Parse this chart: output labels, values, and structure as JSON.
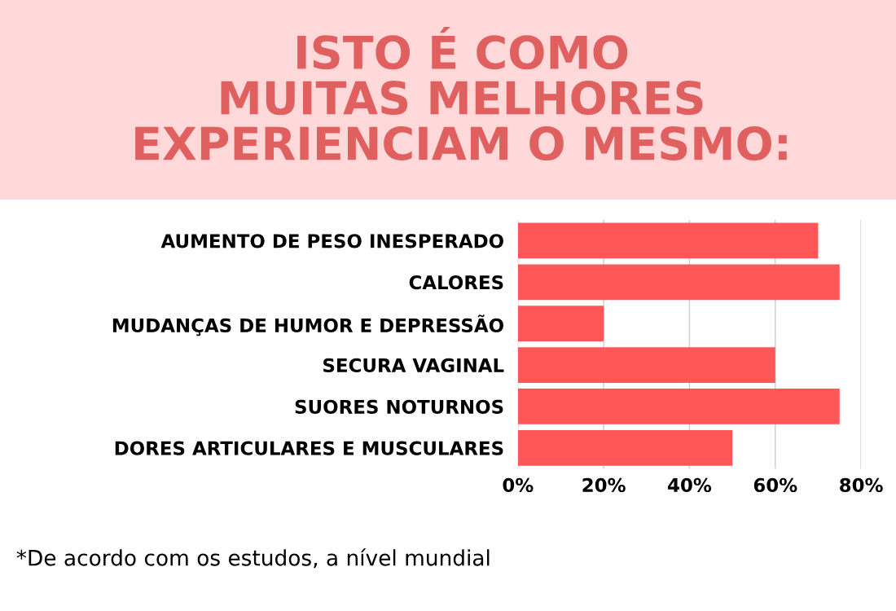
{
  "chart_data": {
    "type": "bar",
    "orientation": "horizontal",
    "title": "ISTO É COMO\nMUITAS MELHORES\nEXPERIENCIAM O MESMO:",
    "categories": [
      "AUMENTO DE PESO INESPERADO",
      "CALORES",
      "MUDANÇAS DE HUMOR E DEPRESSÃO",
      "SECURA VAGINAL",
      "SUORES NOTURNOS",
      "DORES ARTICULARES E MUSCULARES"
    ],
    "values": [
      70,
      75,
      20,
      60,
      75,
      50
    ],
    "color": "#ff5757",
    "xlim": [
      0,
      80
    ],
    "xticks": [
      {
        "value": 0,
        "label": "0%"
      },
      {
        "value": 20,
        "label": "20%"
      },
      {
        "value": 40,
        "label": "40%"
      },
      {
        "value": 60,
        "label": "60%"
      },
      {
        "value": 80,
        "label": "80%"
      }
    ],
    "grid": "x",
    "annotations": [
      "*De acordo com os estudos, a nível mundial"
    ]
  }
}
